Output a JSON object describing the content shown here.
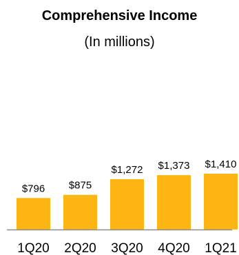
{
  "chart_data": {
    "type": "bar",
    "title": "Comprehensive Income",
    "subtitle": "(In millions)",
    "categories": [
      "1Q20",
      "2Q20",
      "3Q20",
      "4Q20",
      "1Q21"
    ],
    "values": [
      796,
      875,
      1272,
      1373,
      1410
    ],
    "value_labels": [
      "$796",
      "$875",
      "$1,272",
      "$1,373",
      "$1,410"
    ],
    "ylim": [
      0,
      1410
    ],
    "grid": false,
    "legend": "none",
    "bar_color": "#FDB614",
    "baseline_color": "#8C8C8C"
  }
}
